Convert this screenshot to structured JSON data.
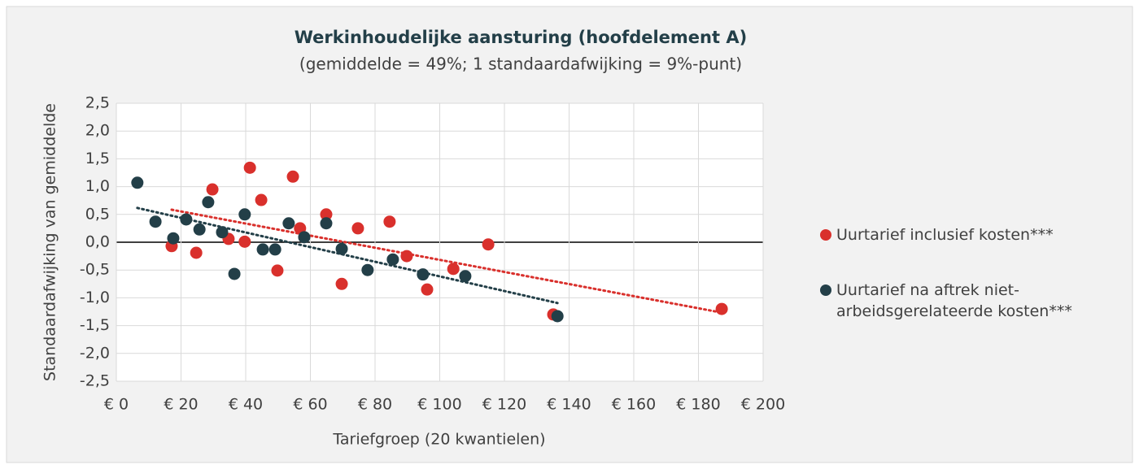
{
  "chart_data": {
    "type": "scatter",
    "title": "Werkinhoudelijke aansturing (hoofdelement A)",
    "subtitle": "(gemiddelde = 49%; 1 standaardafwijking = 9%-punt)",
    "x_label": "Tariefgroep (20 kwantielen)",
    "y_label": "Standaardafwijking van gemiddelde",
    "xlim": [
      0,
      200
    ],
    "xticks": [
      {
        "value": 0,
        "label": "€ 0"
      },
      {
        "value": 20,
        "label": "€ 20"
      },
      {
        "value": 40,
        "label": "€ 40"
      },
      {
        "value": 60,
        "label": "€ 60"
      },
      {
        "value": 80,
        "label": "€ 80"
      },
      {
        "value": 100,
        "label": "€ 100"
      },
      {
        "value": 120,
        "label": "€ 120"
      },
      {
        "value": 140,
        "label": "€ 140"
      },
      {
        "value": 160,
        "label": "€ 160"
      },
      {
        "value": 180,
        "label": "€ 180"
      },
      {
        "value": 200,
        "label": "€ 200"
      }
    ],
    "ylim": [
      -2.5,
      2.5
    ],
    "yticks": [
      {
        "value": 2.5,
        "label": "2,5"
      },
      {
        "value": 2.0,
        "label": "2,0"
      },
      {
        "value": 1.5,
        "label": "1,5"
      },
      {
        "value": 1.0,
        "label": "1,0"
      },
      {
        "value": 0.5,
        "label": "0,5"
      },
      {
        "value": 0,
        "label": "0,0"
      },
      {
        "value": -0.5,
        "label": "-0,5"
      },
      {
        "value": -1.0,
        "label": "-1,0"
      },
      {
        "value": -1.5,
        "label": "-1,5"
      },
      {
        "value": -2.0,
        "label": "-2,0"
      },
      {
        "value": -2.5,
        "label": "-2,5"
      }
    ],
    "grid": true,
    "trendline": true,
    "series": [
      {
        "name": "Uurtarief inclusief kosten***",
        "color": "#d9302c",
        "x": [
          17.1,
          29.7,
          24.7,
          34.7,
          39.7,
          41.3,
          44.8,
          49.8,
          54.6,
          56.8,
          64.9,
          69.7,
          74.7,
          84.5,
          89.8,
          96.1,
          104.2,
          115,
          135.1,
          187.2
        ],
        "values": [
          -0.07,
          0.95,
          -0.19,
          0.06,
          0.01,
          1.34,
          0.76,
          -0.51,
          1.18,
          0.25,
          0.5,
          -0.75,
          0.25,
          0.37,
          -0.25,
          -0.85,
          -0.48,
          -0.04,
          -1.3,
          -1.2
        ]
      },
      {
        "name": "Uurtarief na aftrek niet-arbeidsgerelateerde kosten***",
        "color": "#233f48",
        "x": [
          6.5,
          12.1,
          17.6,
          21.6,
          25.7,
          28.4,
          32.7,
          36.5,
          39.7,
          45.3,
          49.1,
          53.3,
          58.1,
          64.9,
          69.7,
          77.7,
          85.5,
          94.8,
          107.9,
          136.4
        ],
        "values": [
          1.07,
          0.37,
          0.07,
          0.41,
          0.23,
          0.72,
          0.18,
          -0.57,
          0.5,
          -0.13,
          -0.13,
          0.34,
          0.09,
          0.34,
          -0.12,
          -0.5,
          -0.31,
          -0.58,
          -0.61,
          -1.33
        ]
      }
    ]
  }
}
